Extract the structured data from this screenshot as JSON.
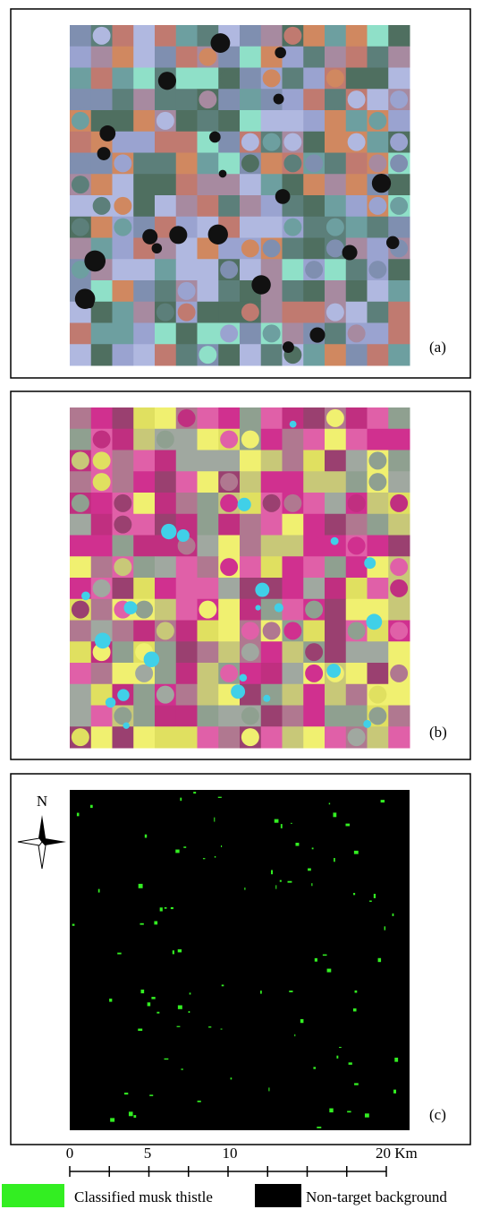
{
  "panels": [
    {
      "label": "(a)"
    },
    {
      "label": "(b)"
    },
    {
      "label": "(c)"
    }
  ],
  "north_arrow": {
    "label": "N"
  },
  "scale_bar": {
    "labels": [
      "0",
      "5",
      "10",
      "20 Km"
    ]
  },
  "legend": {
    "items": [
      {
        "label": "Classified musk thistle",
        "color": "#33ee22"
      },
      {
        "label": "Non-target background",
        "color": "#000000"
      }
    ]
  }
}
